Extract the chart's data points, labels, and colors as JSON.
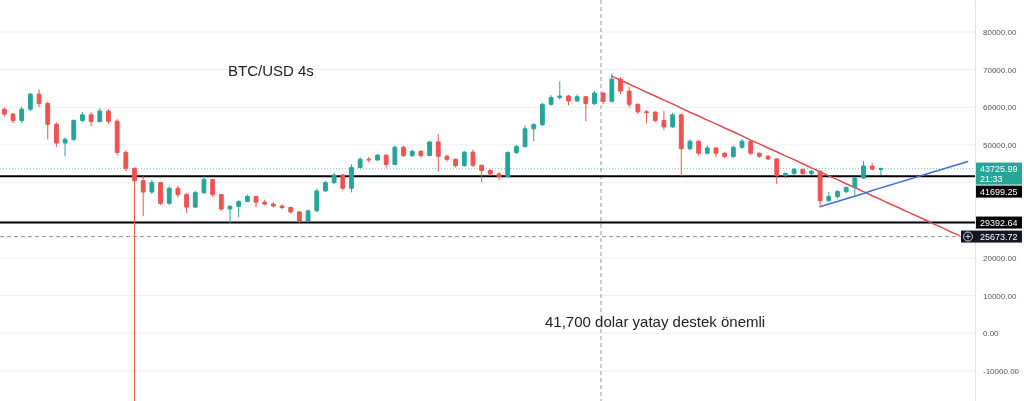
{
  "chart_data": {
    "type": "candlestick",
    "title": "BTC/USD 4s",
    "annotations": [
      "41,700 dolar yatay destek önemli"
    ],
    "categories": [
      null,
      null,
      null,
      null,
      null,
      null,
      null,
      null,
      null,
      null,
      null,
      null,
      null,
      null,
      null,
      null,
      null,
      null,
      null,
      null,
      null,
      null,
      null,
      null,
      null,
      null,
      null,
      null,
      null,
      null,
      null,
      null,
      null,
      null,
      null,
      null,
      null,
      null,
      null,
      null,
      null,
      null,
      null,
      null,
      null,
      null,
      null,
      null,
      null,
      null,
      null,
      null,
      null,
      null,
      null,
      null,
      null,
      null,
      null,
      null,
      null,
      null,
      null,
      null,
      null,
      null,
      null,
      null,
      null,
      null,
      null,
      null,
      null,
      null,
      null,
      null,
      null,
      null,
      null,
      null,
      null,
      null,
      null,
      null,
      null,
      null,
      null,
      null,
      null,
      null,
      null,
      null,
      null,
      null,
      null,
      null,
      null,
      null,
      null,
      null,
      null,
      null,
      null,
      null,
      null,
      null,
      null,
      null,
      null,
      null,
      null,
      null
    ],
    "ylim": [
      -18000,
      88500
    ],
    "yticks": [
      {
        "value": -10000,
        "label": "-10000.00"
      },
      {
        "value": 0,
        "label": "0.00"
      },
      {
        "value": 10000,
        "label": "10000.00"
      },
      {
        "value": 20000,
        "label": "20000.00"
      },
      {
        "value": 30000,
        "label": null
      },
      {
        "value": 40000,
        "label": null
      },
      {
        "value": 50000,
        "label": "50000.00"
      },
      {
        "value": 60000,
        "label": "60000.00"
      },
      {
        "value": 70000,
        "label": "70000.00"
      },
      {
        "value": 80000,
        "label": "80000.00"
      }
    ],
    "grid": "y",
    "series": [
      {
        "type": "candlestick",
        "ohlc": [
          [
            59500,
            60000,
            57500,
            58200
          ],
          [
            58200,
            58500,
            55800,
            56500
          ],
          [
            56500,
            60200,
            55800,
            59500
          ],
          [
            59500,
            63800,
            59000,
            63500
          ],
          [
            63500,
            64800,
            60000,
            61000
          ],
          [
            61000,
            61500,
            51500,
            55500
          ],
          [
            55500,
            56000,
            49500,
            50500
          ],
          [
            50500,
            52000,
            47000,
            51500
          ],
          [
            51500,
            56800,
            51000,
            56500
          ],
          [
            56500,
            58800,
            56000,
            58000
          ],
          [
            58000,
            58700,
            55000,
            56200
          ],
          [
            56200,
            59800,
            56000,
            59000
          ],
          [
            59000,
            59500,
            55500,
            56300
          ],
          [
            56300,
            56800,
            47200,
            48000
          ],
          [
            48000,
            48500,
            43000,
            43800
          ],
          [
            43800,
            44000,
            -18000,
            40500
          ],
          [
            40500,
            41700,
            31100,
            37500
          ],
          [
            37500,
            40800,
            37000,
            40000
          ],
          [
            40000,
            40200,
            34000,
            34500
          ],
          [
            34500,
            39000,
            34000,
            38500
          ],
          [
            38500,
            39200,
            36000,
            36800
          ],
          [
            36800,
            37200,
            32000,
            33500
          ],
          [
            33500,
            37800,
            33200,
            37300
          ],
          [
            37300,
            41700,
            37000,
            40800
          ],
          [
            40800,
            41000,
            36200,
            36800
          ],
          [
            36800,
            37000,
            32500,
            33000
          ],
          [
            33000,
            34000,
            29000,
            33700
          ],
          [
            33700,
            35300,
            30800,
            35000
          ],
          [
            35000,
            36800,
            34800,
            36300
          ],
          [
            36300,
            36500,
            33500,
            34800
          ],
          [
            34800,
            35500,
            34000,
            34300
          ],
          [
            34300,
            34800,
            33400,
            33800
          ],
          [
            33800,
            34200,
            33000,
            33400
          ],
          [
            33400,
            33600,
            31800,
            32200
          ],
          [
            32200,
            32400,
            29300,
            29800
          ],
          [
            29800,
            32800,
            29500,
            32500
          ],
          [
            32500,
            38300,
            32200,
            37800
          ],
          [
            37800,
            40400,
            37500,
            40000
          ],
          [
            40000,
            42600,
            39600,
            42000
          ],
          [
            42000,
            42300,
            38000,
            38500
          ],
          [
            38500,
            44800,
            37400,
            44000
          ],
          [
            44000,
            46700,
            43800,
            46200
          ],
          [
            46200,
            46800,
            45400,
            46000
          ],
          [
            46000,
            47600,
            45800,
            47300
          ],
          [
            47300,
            47500,
            44000,
            44800
          ],
          [
            44800,
            49800,
            44600,
            49400
          ],
          [
            49400,
            49800,
            46800,
            47200
          ],
          [
            47200,
            48800,
            46800,
            48300
          ],
          [
            48300,
            48600,
            46600,
            47200
          ],
          [
            47200,
            51000,
            47000,
            50800
          ],
          [
            50800,
            52900,
            43000,
            47000
          ],
          [
            47000,
            47400,
            45600,
            46200
          ],
          [
            46200,
            46400,
            44000,
            44500
          ],
          [
            44500,
            48400,
            44200,
            48100
          ],
          [
            48100,
            48800,
            44200,
            44600
          ],
          [
            44600,
            44800,
            40100,
            43200
          ],
          [
            43200,
            43600,
            41800,
            42300
          ],
          [
            42300,
            42800,
            40600,
            41600
          ],
          [
            41600,
            48300,
            41300,
            48000
          ],
          [
            48000,
            50000,
            47600,
            49600
          ],
          [
            49600,
            55200,
            49300,
            54300
          ],
          [
            54300,
            55800,
            51000,
            55400
          ],
          [
            55400,
            61200,
            55000,
            60800
          ],
          [
            60800,
            63200,
            60400,
            62600
          ],
          [
            62600,
            66900,
            62000,
            63000
          ],
          [
            63000,
            63300,
            60500,
            61700
          ],
          [
            61700,
            63400,
            61400,
            62800
          ],
          [
            62800,
            63000,
            56300,
            61000
          ],
          [
            61000,
            64400,
            60600,
            63800
          ],
          [
            63800,
            64000,
            60800,
            61600
          ],
          [
            61600,
            69000,
            61200,
            67500
          ],
          [
            67500,
            68000,
            63500,
            64300
          ],
          [
            64300,
            65500,
            60000,
            60800
          ],
          [
            60800,
            61000,
            58200,
            58800
          ],
          [
            58800,
            59300,
            55800,
            58700
          ],
          [
            58700,
            59000,
            56000,
            56500
          ],
          [
            56500,
            59000,
            54000,
            54800
          ],
          [
            54800,
            58500,
            54500,
            58000
          ],
          [
            58000,
            58300,
            41700,
            49000
          ],
          [
            49000,
            51500,
            48500,
            51000
          ],
          [
            51000,
            51200,
            47200,
            47800
          ],
          [
            47800,
            49800,
            47500,
            49200
          ],
          [
            49200,
            49500,
            46700,
            47800
          ],
          [
            47800,
            48200,
            46500,
            46900
          ],
          [
            46900,
            49800,
            46600,
            49400
          ],
          [
            49400,
            51600,
            49000,
            51000
          ],
          [
            51000,
            51300,
            47300,
            47800
          ],
          [
            47800,
            48000,
            46600,
            47000
          ],
          [
            47000,
            47300,
            46000,
            46300
          ],
          [
            46300,
            46500,
            39600,
            41900
          ],
          [
            41900,
            42700,
            41200,
            42400
          ],
          [
            42400,
            43900,
            42000,
            43500
          ],
          [
            43500,
            43700,
            42000,
            42400
          ],
          [
            42400,
            43400,
            42000,
            43000
          ],
          [
            43000,
            43200,
            33500,
            35200
          ],
          [
            35200,
            37500,
            35000,
            36300
          ],
          [
            36300,
            38000,
            35800,
            37600
          ],
          [
            37600,
            39000,
            37200,
            38700
          ],
          [
            38700,
            41600,
            36600,
            41200
          ],
          [
            41200,
            45700,
            41000,
            44400
          ],
          [
            44400,
            45200,
            43200,
            43600
          ],
          [
            43600,
            44000,
            42000,
            43725.99
          ],
          null,
          null,
          null,
          null,
          null,
          null,
          null,
          null,
          null,
          null
        ]
      },
      {
        "type": "line",
        "color": "#e04a4a",
        "values": [
          null,
          null,
          null,
          null,
          null,
          null,
          null,
          null,
          null,
          null,
          null,
          null,
          null,
          null,
          null,
          null,
          null,
          null,
          null,
          null,
          null,
          null,
          null,
          null,
          null,
          null,
          null,
          null,
          null,
          null,
          null,
          null,
          null,
          null,
          null,
          null,
          null,
          null,
          null,
          null,
          null,
          null,
          null,
          null,
          null,
          null,
          null,
          null,
          null,
          null,
          null,
          null,
          null,
          null,
          null,
          null,
          null,
          null,
          null,
          null,
          null,
          null,
          null,
          null,
          null,
          null,
          null,
          null,
          null,
          null,
          68300,
          67200,
          66200,
          65100,
          64000,
          63000,
          61900,
          60900,
          59800,
          58700,
          57700,
          56600,
          55600,
          54500,
          53500,
          52400,
          51300,
          50300,
          49200,
          48200,
          47100,
          46100,
          45000,
          43900,
          42900,
          41800,
          40800,
          39700,
          38700,
          37600,
          36500,
          35500,
          34400,
          33400,
          32300,
          31300,
          30200,
          29100,
          28100,
          27000,
          26000,
          null
        ]
      },
      {
        "type": "line",
        "color": "#3f6fd6",
        "values": [
          null,
          null,
          null,
          null,
          null,
          null,
          null,
          null,
          null,
          null,
          null,
          null,
          null,
          null,
          null,
          null,
          null,
          null,
          null,
          null,
          null,
          null,
          null,
          null,
          null,
          null,
          null,
          null,
          null,
          null,
          null,
          null,
          null,
          null,
          null,
          null,
          null,
          null,
          null,
          null,
          null,
          null,
          null,
          null,
          null,
          null,
          null,
          null,
          null,
          null,
          null,
          null,
          null,
          null,
          null,
          null,
          null,
          null,
          null,
          null,
          null,
          null,
          null,
          null,
          null,
          null,
          null,
          null,
          null,
          null,
          null,
          null,
          null,
          null,
          null,
          null,
          null,
          null,
          null,
          null,
          null,
          null,
          null,
          null,
          null,
          null,
          null,
          null,
          null,
          null,
          null,
          null,
          null,
          null,
          33600,
          34300,
          35000,
          35700,
          36400,
          37100,
          37900,
          38600,
          39300,
          40000,
          40700,
          41400,
          42100,
          42800,
          43500,
          44200,
          44900,
          45600
        ]
      }
    ],
    "ref_lines": [
      {
        "axis": "y",
        "value": 43725.99,
        "label": "43725.99\n21:33",
        "color": "#26a69a",
        "line_style": "dotted"
      },
      {
        "axis": "y",
        "value": 41699.25,
        "label": "41699.25",
        "color": "#000000",
        "line_style": "solid"
      },
      {
        "axis": "y",
        "value": 29392.64,
        "label": "29392.64",
        "color": "#000000",
        "line_style": "solid"
      },
      {
        "axis": "y",
        "value": 25673.72,
        "label": "25673.72",
        "color": "#9598a1",
        "line_style": "dashed"
      }
    ]
  }
}
